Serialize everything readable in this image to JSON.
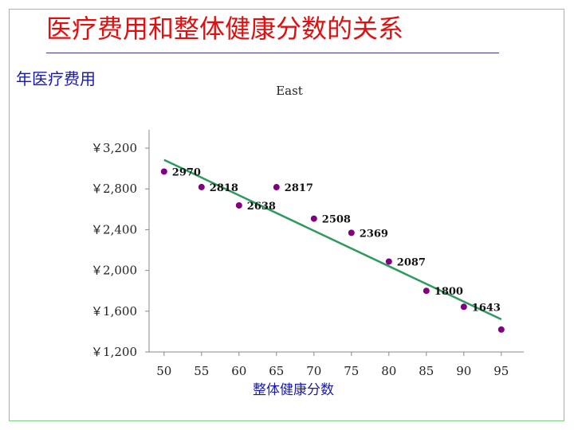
{
  "slide": {
    "title": "医疗费用和整体健康分数的关系"
  },
  "chart_data": {
    "type": "scatter",
    "title": "East",
    "xlabel": "整体健康分数",
    "ylabel": "年医疗费用",
    "x_ticks": [
      "50",
      "55",
      "60",
      "65",
      "70",
      "75",
      "80",
      "85",
      "90",
      "95"
    ],
    "y_ticks": [
      "￥1,200",
      "￥1,600",
      "￥2,000",
      "￥2,400",
      "￥2,800",
      "￥3,200"
    ],
    "xlim": [
      48,
      98
    ],
    "ylim": [
      1200,
      3380
    ],
    "points": [
      {
        "x": 50,
        "y": 2970,
        "label": "2970"
      },
      {
        "x": 55,
        "y": 2818,
        "label": "2818"
      },
      {
        "x": 60,
        "y": 2638,
        "label": "2638"
      },
      {
        "x": 65,
        "y": 2817,
        "label": "2817"
      },
      {
        "x": 70,
        "y": 2508,
        "label": "2508"
      },
      {
        "x": 75,
        "y": 2369,
        "label": "2369"
      },
      {
        "x": 80,
        "y": 2087,
        "label": "2087"
      },
      {
        "x": 85,
        "y": 1800,
        "label": "1800"
      },
      {
        "x": 90,
        "y": 1643,
        "label": "1643"
      },
      {
        "x": 95,
        "y": 1420,
        "label": ""
      }
    ],
    "trendline": {
      "x": [
        50,
        95
      ],
      "y": [
        3085,
        1520
      ]
    },
    "colors": {
      "points": "#800080",
      "trendline": "#2e9a5e",
      "axis": "#888888"
    },
    "grid": false,
    "legend": "none"
  }
}
